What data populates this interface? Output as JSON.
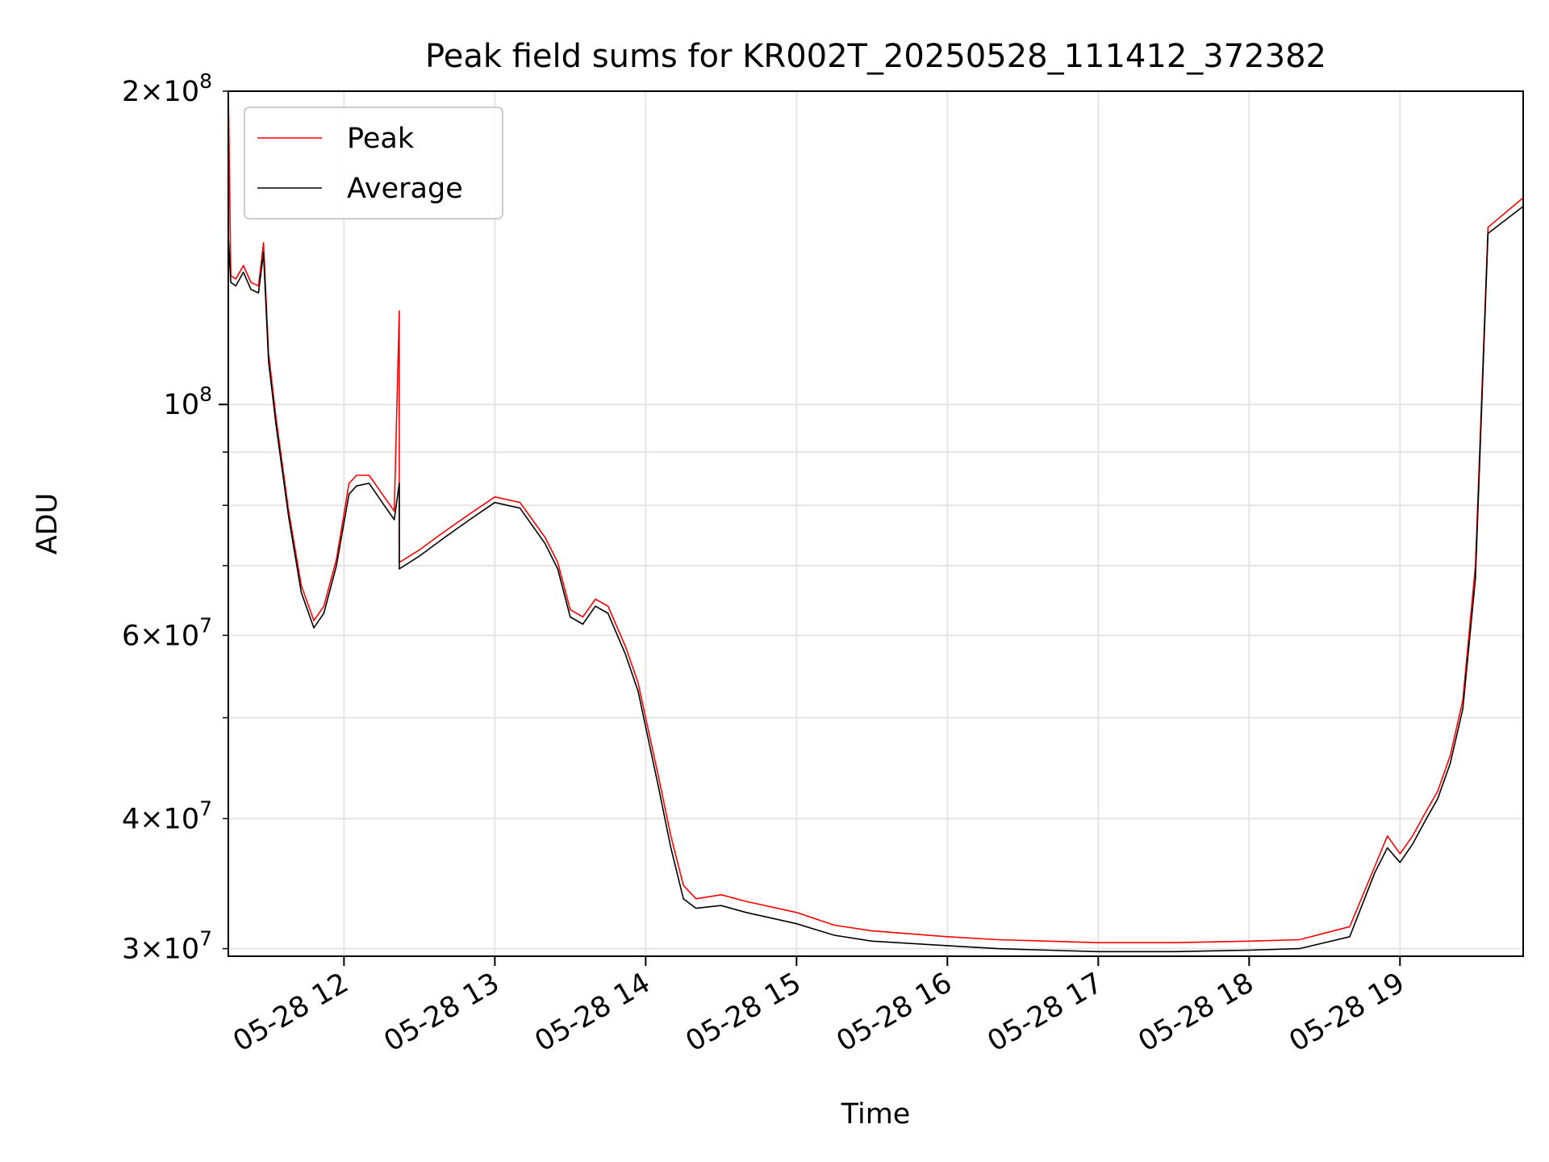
{
  "chart_data": {
    "type": "line",
    "title": "Peak field sums for KR002T_20250528_111412_372382",
    "xlabel": "Time",
    "ylabel": "ADU",
    "yscale": "log",
    "ylim": [
      29500000,
      200000000
    ],
    "xlim": [
      "2025-05-28 11:14",
      "2025-05-28 19:49"
    ],
    "x_ticks": [
      "2025-05-28 12:00",
      "2025-05-28 13:00",
      "2025-05-28 14:00",
      "2025-05-28 15:00",
      "2025-05-28 16:00",
      "2025-05-28 17:00",
      "2025-05-28 18:00",
      "2025-05-28 19:00"
    ],
    "x_tick_labels": [
      "05-28 12",
      "05-28 13",
      "05-28 14",
      "05-28 15",
      "05-28 16",
      "05-28 17",
      "05-28 18",
      "05-28 19"
    ],
    "y_ticks_major": [
      100000000
    ],
    "y_tick_labels": [
      {
        "value": 200000000,
        "base": "2×10",
        "exp": "8"
      },
      {
        "value": 100000000,
        "base": "10",
        "exp": "8"
      },
      {
        "value": 60000000,
        "base": "6×10",
        "exp": "7"
      },
      {
        "value": 40000000,
        "base": "4×10",
        "exp": "7"
      },
      {
        "value": 30000000,
        "base": "3×10",
        "exp": "7"
      }
    ],
    "y_ticks_minor": [
      30000000,
      40000000,
      50000000,
      60000000,
      70000000,
      80000000,
      90000000,
      200000000
    ],
    "grid": true,
    "legend_position": "top-left",
    "series": [
      {
        "name": "Peak",
        "color": "#ff0000",
        "x": [
          "2025-05-28 11:14",
          "2025-05-28 11:15",
          "2025-05-28 11:17",
          "2025-05-28 11:20",
          "2025-05-28 11:23",
          "2025-05-28 11:26",
          "2025-05-28 11:28",
          "2025-05-28 11:30",
          "2025-05-28 11:33",
          "2025-05-28 11:38",
          "2025-05-28 11:43",
          "2025-05-28 11:48",
          "2025-05-28 11:52",
          "2025-05-28 11:57",
          "2025-05-28 12:02",
          "2025-05-28 12:05",
          "2025-05-28 12:10",
          "2025-05-28 12:16",
          "2025-05-28 12:20",
          "2025-05-28 12:22",
          "2025-05-28 12:22",
          "2025-05-28 12:30",
          "2025-05-28 12:40",
          "2025-05-28 12:50",
          "2025-05-28 13:00",
          "2025-05-28 13:10",
          "2025-05-28 13:20",
          "2025-05-28 13:25",
          "2025-05-28 13:30",
          "2025-05-28 13:35",
          "2025-05-28 13:40",
          "2025-05-28 13:45",
          "2025-05-28 13:52",
          "2025-05-28 13:57",
          "2025-05-28 14:00",
          "2025-05-28 14:05",
          "2025-05-28 14:10",
          "2025-05-28 14:15",
          "2025-05-28 14:20",
          "2025-05-28 14:30",
          "2025-05-28 14:40",
          "2025-05-28 15:00",
          "2025-05-28 15:15",
          "2025-05-28 15:30",
          "2025-05-28 16:00",
          "2025-05-28 16:20",
          "2025-05-28 16:40",
          "2025-05-28 17:00",
          "2025-05-28 17:30",
          "2025-05-28 18:00",
          "2025-05-28 18:20",
          "2025-05-28 18:40",
          "2025-05-28 18:50",
          "2025-05-28 18:55",
          "2025-05-28 19:00",
          "2025-05-28 19:05",
          "2025-05-28 19:10",
          "2025-05-28 19:15",
          "2025-05-28 19:20",
          "2025-05-28 19:25",
          "2025-05-28 19:30",
          "2025-05-28 19:35",
          "2025-05-28 19:49"
        ],
        "y": [
          200000000,
          133000000,
          132000000,
          136000000,
          131000000,
          130000000,
          143000000,
          112000000,
          97000000,
          79000000,
          67000000,
          62000000,
          64000000,
          71000000,
          84000000,
          85500000,
          85500000,
          81500000,
          79000000,
          123000000,
          70500000,
          72500000,
          75500000,
          78500000,
          81500000,
          80500000,
          74500000,
          70500000,
          63500000,
          62500000,
          65000000,
          64000000,
          58500000,
          54000000,
          50000000,
          44000000,
          38500000,
          34500000,
          33500000,
          33800000,
          33300000,
          32500000,
          31600000,
          31200000,
          30800000,
          30600000,
          30500000,
          30400000,
          30400000,
          30500000,
          30600000,
          31500000,
          36000000,
          38500000,
          37000000,
          38500000,
          40500000,
          42500000,
          46000000,
          52000000,
          70000000,
          148000000,
          158000000
        ]
      },
      {
        "name": "Average",
        "color": "#000000",
        "x": [
          "2025-05-28 11:14",
          "2025-05-28 11:15",
          "2025-05-28 11:17",
          "2025-05-28 11:20",
          "2025-05-28 11:23",
          "2025-05-28 11:26",
          "2025-05-28 11:28",
          "2025-05-28 11:30",
          "2025-05-28 11:33",
          "2025-05-28 11:38",
          "2025-05-28 11:43",
          "2025-05-28 11:48",
          "2025-05-28 11:52",
          "2025-05-28 11:57",
          "2025-05-28 12:02",
          "2025-05-28 12:05",
          "2025-05-28 12:10",
          "2025-05-28 12:16",
          "2025-05-28 12:20",
          "2025-05-28 12:22",
          "2025-05-28 12:22",
          "2025-05-28 12:30",
          "2025-05-28 12:40",
          "2025-05-28 12:50",
          "2025-05-28 13:00",
          "2025-05-28 13:10",
          "2025-05-28 13:20",
          "2025-05-28 13:25",
          "2025-05-28 13:30",
          "2025-05-28 13:35",
          "2025-05-28 13:40",
          "2025-05-28 13:45",
          "2025-05-28 13:52",
          "2025-05-28 13:57",
          "2025-05-28 14:00",
          "2025-05-28 14:05",
          "2025-05-28 14:10",
          "2025-05-28 14:15",
          "2025-05-28 14:20",
          "2025-05-28 14:30",
          "2025-05-28 14:40",
          "2025-05-28 15:00",
          "2025-05-28 15:15",
          "2025-05-28 15:30",
          "2025-05-28 16:00",
          "2025-05-28 16:20",
          "2025-05-28 16:40",
          "2025-05-28 17:00",
          "2025-05-28 17:30",
          "2025-05-28 18:00",
          "2025-05-28 18:20",
          "2025-05-28 18:40",
          "2025-05-28 18:50",
          "2025-05-28 18:55",
          "2025-05-28 19:00",
          "2025-05-28 19:05",
          "2025-05-28 19:10",
          "2025-05-28 19:15",
          "2025-05-28 19:20",
          "2025-05-28 19:25",
          "2025-05-28 19:30",
          "2025-05-28 19:35",
          "2025-05-28 19:49"
        ],
        "y": [
          145000000,
          131000000,
          130000000,
          134000000,
          129000000,
          128000000,
          140000000,
          110000000,
          95500000,
          78000000,
          66000000,
          61000000,
          63000000,
          70000000,
          82000000,
          83500000,
          84000000,
          80000000,
          77500000,
          84000000,
          69500000,
          71500000,
          74500000,
          77500000,
          80500000,
          79500000,
          73500000,
          69500000,
          62500000,
          61500000,
          64000000,
          63000000,
          57500000,
          53000000,
          49000000,
          43000000,
          37500000,
          33500000,
          32800000,
          33000000,
          32500000,
          31700000,
          30900000,
          30500000,
          30200000,
          30000000,
          29900000,
          29800000,
          29800000,
          29900000,
          30000000,
          30800000,
          35500000,
          37500000,
          36300000,
          37800000,
          39800000,
          41800000,
          45200000,
          51000000,
          68000000,
          146000000,
          155000000
        ]
      }
    ]
  }
}
